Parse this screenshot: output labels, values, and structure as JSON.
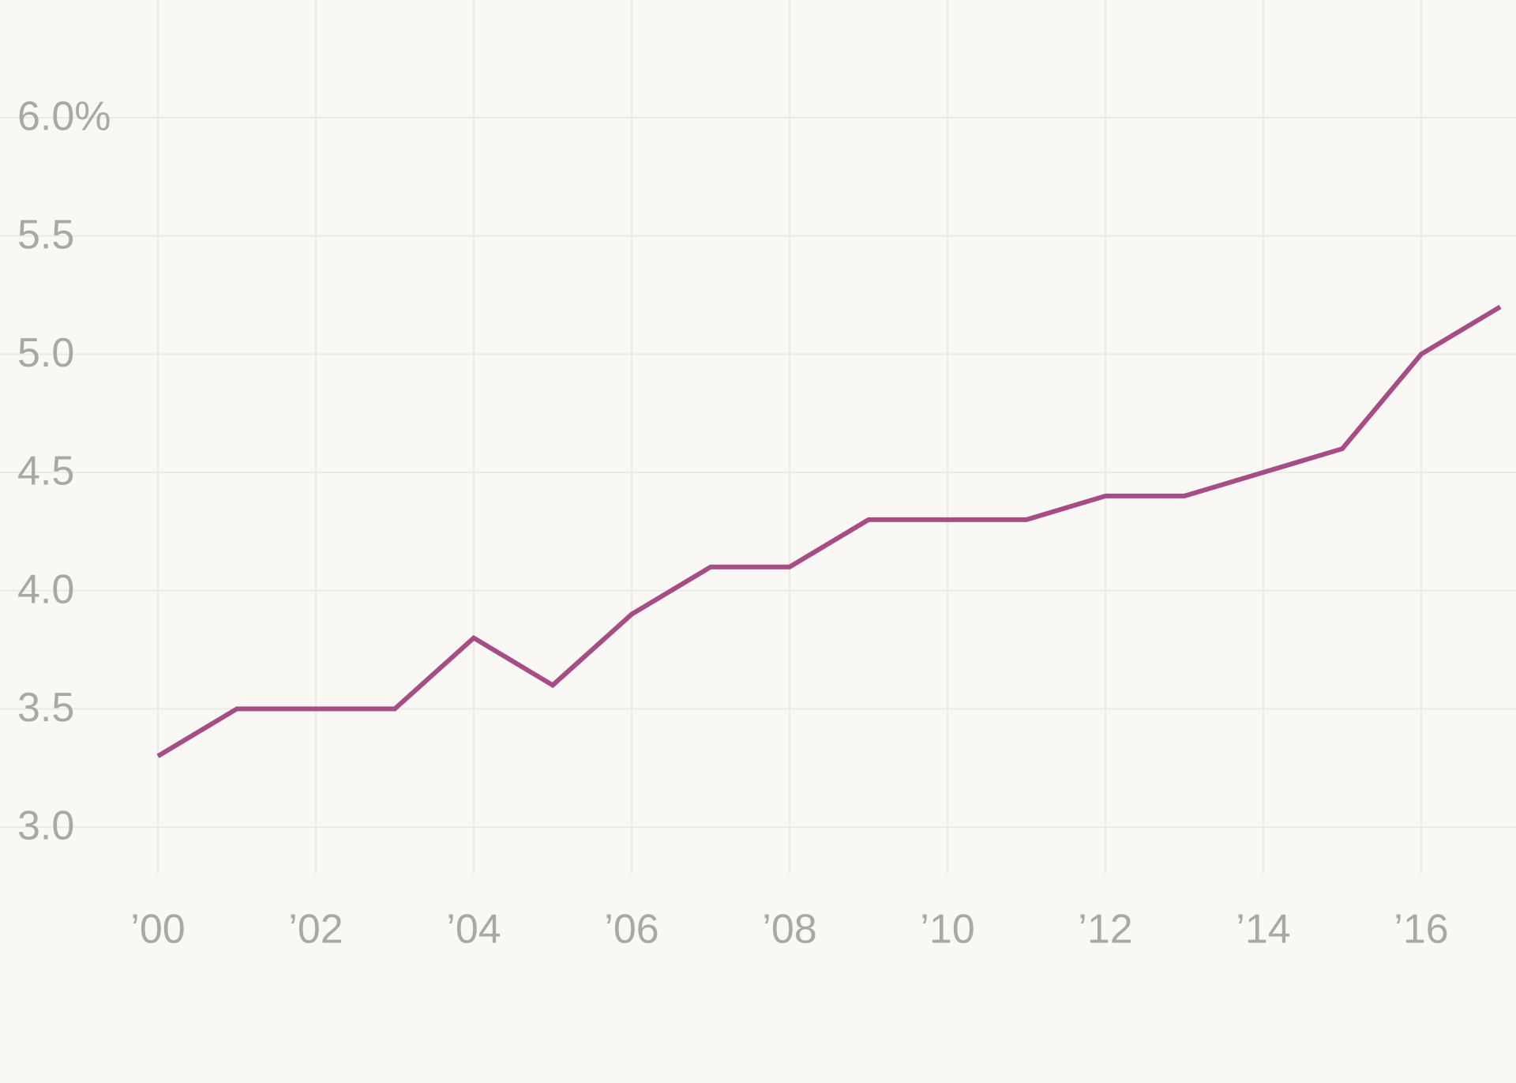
{
  "chart_data": {
    "type": "line",
    "x": [
      2000,
      2001,
      2002,
      2003,
      2004,
      2005,
      2006,
      2007,
      2008,
      2009,
      2010,
      2011,
      2012,
      2013,
      2014,
      2015,
      2016,
      2017
    ],
    "series": [
      {
        "color": "#a64d85",
        "values": [
          3.3,
          3.5,
          3.5,
          3.5,
          3.8,
          3.6,
          3.9,
          4.1,
          4.1,
          4.3,
          4.3,
          4.3,
          4.4,
          4.4,
          4.5,
          4.6,
          5.0,
          5.2
        ]
      }
    ],
    "xlim": [
      2000,
      2017
    ],
    "xticks": [
      {
        "value": 2000,
        "label": "’00"
      },
      {
        "value": 2002,
        "label": "’02"
      },
      {
        "value": 2004,
        "label": "’04"
      },
      {
        "value": 2006,
        "label": "’06"
      },
      {
        "value": 2008,
        "label": "’08"
      },
      {
        "value": 2010,
        "label": "’10"
      },
      {
        "value": 2012,
        "label": "’12"
      },
      {
        "value": 2014,
        "label": "’14"
      },
      {
        "value": 2016,
        "label": "’16"
      }
    ],
    "ylim": [
      3,
      6
    ],
    "yticks": [
      {
        "value": 3,
        "label": "3.0"
      },
      3.5,
      {
        "value": 4,
        "label": "4.0"
      },
      4.5,
      {
        "value": 5,
        "label": "5.0"
      },
      5.5,
      {
        "value": 6,
        "label": "6.0%"
      }
    ],
    "grid": true
  }
}
